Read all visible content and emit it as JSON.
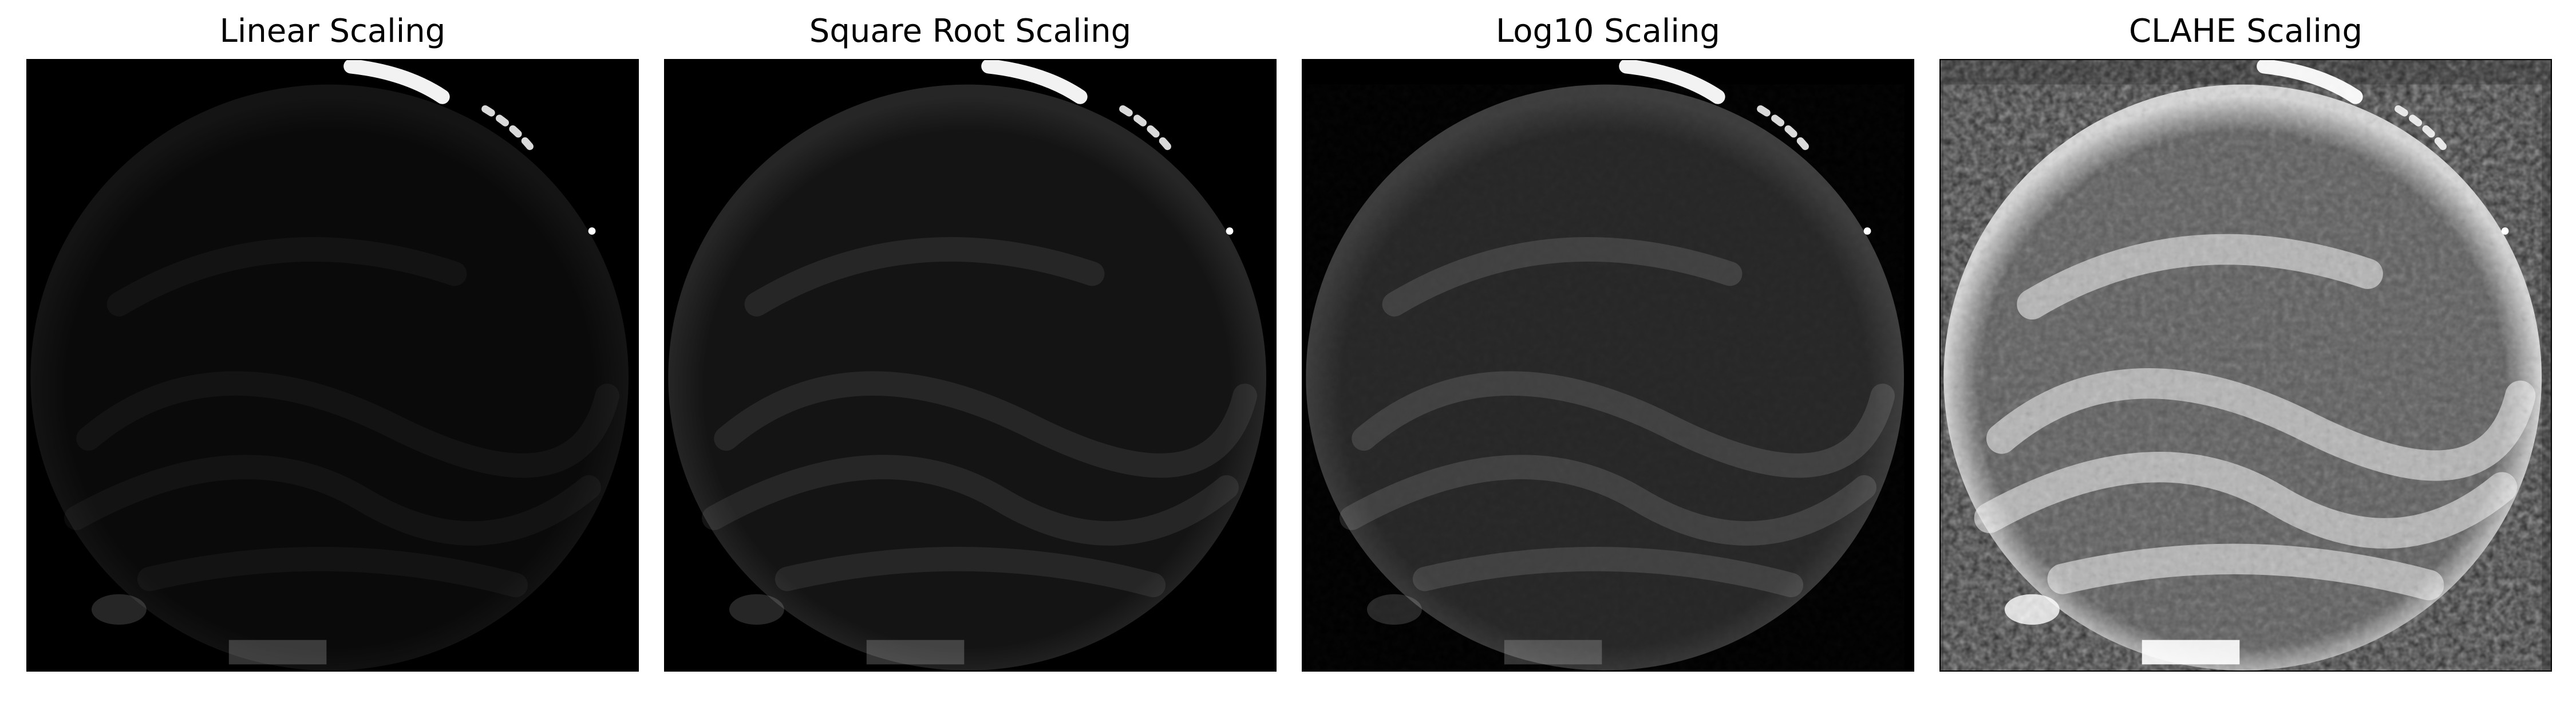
{
  "figure": {
    "panels": [
      {
        "title": "Linear Scaling",
        "mode": "linear"
      },
      {
        "title": "Square Root Scaling",
        "mode": "sqrt"
      },
      {
        "title": "Log10 Scaling",
        "mode": "log"
      },
      {
        "title": "CLAHE Scaling",
        "mode": "clahe"
      }
    ]
  }
}
